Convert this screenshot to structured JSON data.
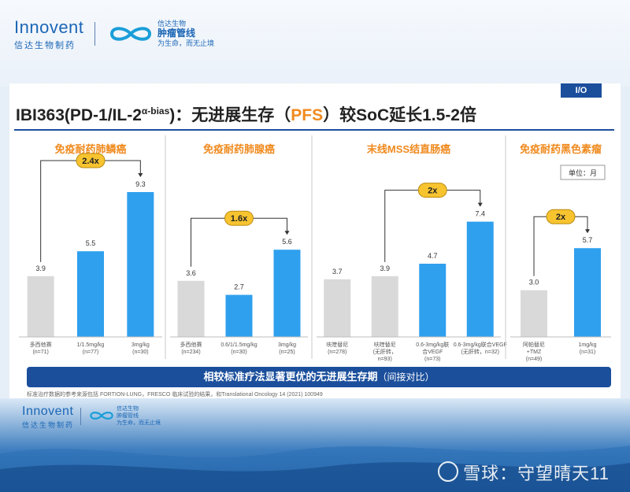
{
  "header": {
    "brand": "Innovent",
    "brand_sub": "信达生物制药",
    "oncology_line1": "信达生物",
    "oncology_line2": "肿瘤管线",
    "oncology_line3": "为生命，而无止境"
  },
  "slide": {
    "tag": "I/O",
    "title_prefix": "IBI363(PD-1/IL-2",
    "title_sup": "α-bias",
    "title_mid": ")：无进展生存（",
    "title_pfs": "PFS",
    "title_suffix": "）较SoC延长1.5-2倍",
    "unit_label": "单位：月",
    "banner_main": "相较标准疗法显著更优的无进展生存期",
    "banner_sub": "（间接对比）",
    "footnote": "标准治疗数据的参考来源包括 FORTION-LUNG，FRESCO 临床试验的结果，和Translational Oncology 14 (2021) 100949"
  },
  "colors": {
    "soc_bar": "#d9d9d9",
    "ibi_bar": "#2fa0ee",
    "multiplier_badge": "#f7c430",
    "title_accent": "#f08a1e",
    "banner": "#1b4f9c"
  },
  "chart_data": [
    {
      "type": "bar",
      "title": "免疫耐药肺鳞癌",
      "categories": [
        "多西他赛\n(n=71)",
        "1/1.5mg/kg\n(n=77)",
        "3mg/kg\n(n=30)"
      ],
      "values": [
        3.9,
        5.5,
        9.3
      ],
      "bar_roles": [
        "soc",
        "ibi",
        "ibi"
      ],
      "comparison": {
        "from": 0,
        "to": 2,
        "label": "2.4x"
      }
    },
    {
      "type": "bar",
      "title": "免疫耐药肺腺癌",
      "categories": [
        "多西他赛\n(n=234)",
        "0.6/1/1.5mg/kg\n(n=30)",
        "3mg/kg\n(n=25)"
      ],
      "values": [
        3.6,
        2.7,
        5.6
      ],
      "bar_roles": [
        "soc",
        "ibi",
        "ibi"
      ],
      "comparison": {
        "from": 0,
        "to": 2,
        "label": "1.6x"
      }
    },
    {
      "type": "bar",
      "title": "末线MSS结直肠癌",
      "categories": [
        "呋喹替尼\n(n=278)",
        "呋喹替尼\n(无肝转，\nn=93)",
        "0.6-3mg/kg联\n合VEGF\n(n=73)",
        "0.6-3mg/kg联合VEGF\n(无肝转，n=32)"
      ],
      "values": [
        3.7,
        3.9,
        4.7,
        7.4
      ],
      "bar_roles": [
        "soc",
        "soc",
        "ibi",
        "ibi"
      ],
      "comparison": {
        "from": 1,
        "to": 3,
        "label": "2x"
      }
    },
    {
      "type": "bar",
      "title": "免疫耐药黑色素瘤",
      "categories": [
        "阿帕替尼\n+TMZ\n(n=49)",
        "1mg/kg\n(n=31)"
      ],
      "values": [
        3.0,
        5.7
      ],
      "bar_roles": [
        "soc",
        "ibi"
      ],
      "comparison": {
        "from": 0,
        "to": 1,
        "label": "2x"
      }
    }
  ],
  "watermark": "雪球：守望晴天11"
}
